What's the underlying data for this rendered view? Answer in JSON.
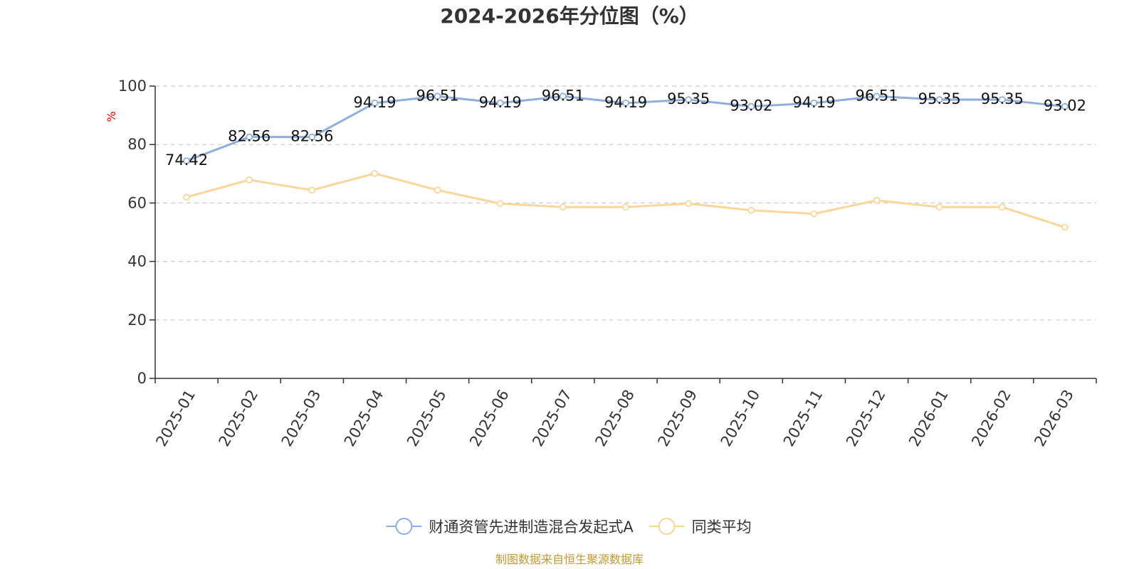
{
  "chart_data": {
    "type": "line",
    "title": "2024-2026年分位图（%）",
    "ylabel": "%",
    "xlabel": "",
    "ylim": [
      0,
      100
    ],
    "yticks": [
      0,
      20,
      40,
      60,
      80,
      100
    ],
    "grid": true,
    "legend_position": "bottom-center",
    "categories": [
      "2025-01",
      "2025-02",
      "2025-03",
      "2025-04",
      "2025-05",
      "2025-06",
      "2025-07",
      "2025-08",
      "2025-09",
      "2025-10",
      "2025-11",
      "2025-12",
      "2026-01",
      "2026-02",
      "2026-03"
    ],
    "series": [
      {
        "name": "财通资管先进制造混合发起式A",
        "color": "#8eaedb",
        "show_labels": true,
        "values": [
          74.42,
          82.56,
          82.56,
          94.19,
          96.51,
          94.19,
          96.51,
          94.19,
          95.35,
          93.02,
          94.19,
          96.51,
          95.35,
          95.35,
          93.02
        ]
      },
      {
        "name": "同类平均",
        "color": "#fbd699",
        "show_labels": false,
        "values": [
          62.0,
          67.9,
          64.4,
          70.1,
          64.4,
          59.8,
          58.6,
          58.6,
          59.8,
          57.5,
          56.3,
          60.9,
          58.6,
          58.6,
          51.7
        ]
      }
    ]
  },
  "source_text": "制图数据来自恒生聚源数据库"
}
